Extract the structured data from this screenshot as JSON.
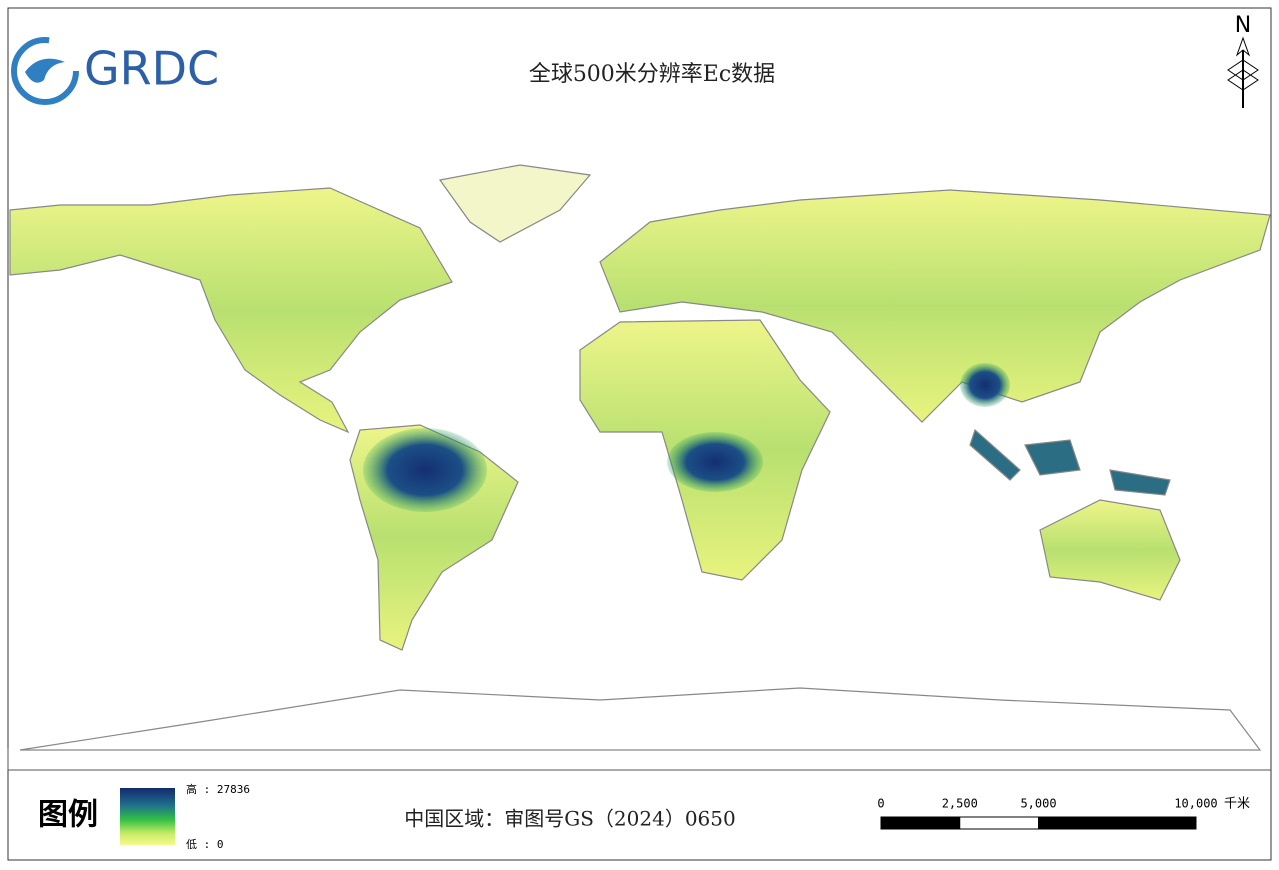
{
  "header": {
    "logo": "GRDC",
    "title": "全球500米分辨率Ec数据"
  },
  "north_arrow": {
    "label": "N"
  },
  "legend": {
    "title": "图例",
    "high": "高 : 27836",
    "low": "低 : 0"
  },
  "approval_note": "中国区域：审图号GS（2024）0650",
  "scale_bar": {
    "ticks": [
      0,
      {
        "value": 2500,
        "label": "2,500"
      },
      {
        "value": 5000,
        "label": "5,000"
      },
      {
        "value": 10000,
        "label": "10,000"
      }
    ],
    "unit": "千米"
  }
}
